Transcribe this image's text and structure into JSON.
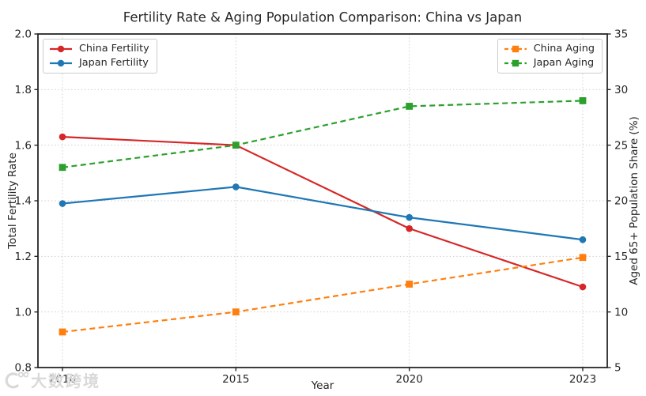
{
  "watermark": {
    "logo_name": "dashukuajing-logo",
    "text": "大数跨境"
  },
  "chart_data": {
    "type": "line",
    "title": "Fertility Rate & Aging Population Comparison: China vs Japan",
    "xlabel": "Year",
    "ylabel_left": "Total Fertility Rate",
    "ylabel_right": "Aged 65+ Population Share (%)",
    "categories": [
      "2010",
      "2015",
      "2020",
      "2023"
    ],
    "x_axis_spacing": "equal",
    "grid": true,
    "y_left": {
      "min": 0.8,
      "max": 2.0,
      "ticks": [
        "2.0",
        "1.8",
        "1.6",
        "1.4",
        "1.2",
        "1.0",
        "0.8"
      ]
    },
    "y_right": {
      "min": 5,
      "max": 35,
      "ticks": [
        "35",
        "30",
        "25",
        "20",
        "15",
        "10",
        "5"
      ]
    },
    "series": [
      {
        "name": "China Fertility",
        "axis": "left",
        "color": "#d62728",
        "style": "solid",
        "marker": "circle",
        "values": [
          1.63,
          1.6,
          1.3,
          1.09
        ]
      },
      {
        "name": "Japan Fertility",
        "axis": "left",
        "color": "#1f77b4",
        "style": "solid",
        "marker": "circle",
        "values": [
          1.39,
          1.45,
          1.34,
          1.26
        ]
      },
      {
        "name": "China Aging",
        "axis": "right",
        "color": "#ff7f0e",
        "style": "dashed",
        "marker": "square",
        "values": [
          8.2,
          10.0,
          12.5,
          14.9
        ]
      },
      {
        "name": "Japan Aging",
        "axis": "right",
        "color": "#2ca02c",
        "style": "dashed",
        "marker": "square",
        "values": [
          23.0,
          25.0,
          28.5,
          29.0
        ]
      }
    ],
    "legends": {
      "left": [
        "China Fertility",
        "Japan Fertility"
      ],
      "right": [
        "China Aging",
        "Japan Aging"
      ]
    },
    "style_hints": {
      "grid_color": "#cfcfcf",
      "spine_color": "#262626",
      "background": "#ffffff"
    }
  }
}
